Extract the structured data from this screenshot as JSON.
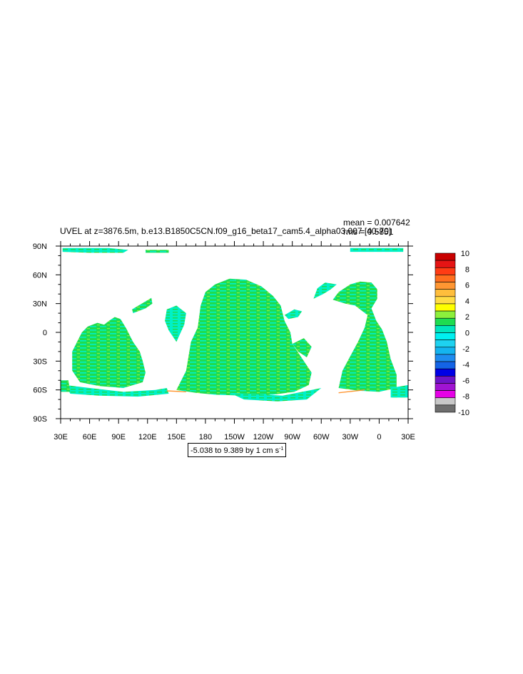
{
  "chart_data": {
    "type": "heatmap",
    "title": "UVEL at z=3876.5m, b.e13.B1850C5CN.f09_g16_beta17_cam5.4_alpha03.007 [40-70]",
    "stats": {
      "mean": "mean = 0.007642",
      "rms": "rms = 0.5851"
    },
    "range_label": "-5.038 to 9.389 by 1",
    "units": "cm s",
    "units_exp": "-1",
    "x_ticks": [
      "30E",
      "60E",
      "90E",
      "120E",
      "150E",
      "180",
      "150W",
      "120W",
      "90W",
      "60W",
      "30W",
      "0",
      "30E"
    ],
    "y_ticks": [
      "90N",
      "60N",
      "30N",
      "0",
      "30S",
      "60S",
      "90S"
    ],
    "xlim": [
      30,
      390
    ],
    "ylim": [
      -90,
      90
    ],
    "colorbar": {
      "labels": [
        "10",
        "8",
        "6",
        "4",
        "2",
        "0",
        "-2",
        "-4",
        "-6",
        "-8",
        "-10"
      ],
      "colors": [
        "#c80000",
        "#e61414",
        "#ff3c14",
        "#ff6e1e",
        "#ff9632",
        "#ffbe3c",
        "#ffdc46",
        "#ffff00",
        "#8cf03c",
        "#1edc50",
        "#00e6be",
        "#00f0f0",
        "#1ed2f0",
        "#14b4f0",
        "#1e8cf0",
        "#1464e6",
        "#0000e6",
        "#6e14c8",
        "#a014d2",
        "#e600e6",
        "#c8c8c8",
        "#6e6e6e"
      ]
    },
    "field": {
      "dominant_colors": [
        "#1edc50",
        "#00f0c8",
        "#8cf03c",
        "#ff9632"
      ],
      "regions": [
        {
          "name": "Pacific Ocean",
          "lon": [
            145,
            275
          ],
          "lat": [
            -72,
            55
          ]
        },
        {
          "name": "Atlantic Ocean",
          "lon": [
            290,
            390
          ],
          "lat": [
            -68,
            55
          ]
        },
        {
          "name": "Indian Ocean",
          "lon": [
            35,
            120
          ],
          "lat": [
            -65,
            18
          ]
        },
        {
          "name": "Arctic strip",
          "lon": [
            30,
            390
          ],
          "lat": [
            82,
            90
          ]
        }
      ]
    }
  }
}
